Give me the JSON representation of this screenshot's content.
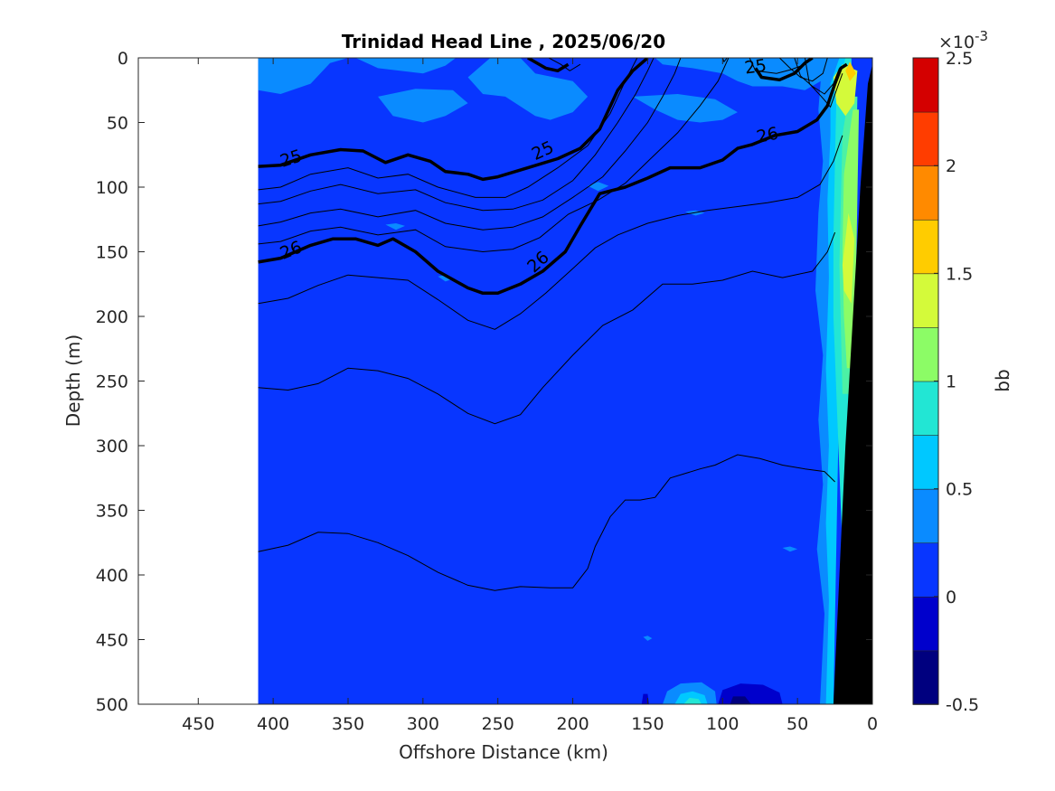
{
  "chart_data": {
    "type": "heatmap",
    "title": "Trinidad Head Line , 2025/06/20",
    "xlabel": "Offshore Distance (km)",
    "ylabel": "Depth (m)",
    "xlim": [
      490,
      0
    ],
    "ylim": [
      0,
      500
    ],
    "x_ticks": [
      "450",
      "400",
      "350",
      "300",
      "250",
      "200",
      "150",
      "100",
      "50",
      "0"
    ],
    "y_ticks": [
      "0",
      "50",
      "100",
      "150",
      "200",
      "250",
      "300",
      "350",
      "400",
      "450",
      "500"
    ],
    "colorbar": {
      "label": "bb",
      "exponent": "×10",
      "exponent_power": "-3",
      "range": [
        -0.5,
        2.5
      ],
      "tick_labels": [
        "2.5",
        "2",
        "1.5",
        "1",
        "0.5",
        "0",
        "-0.5"
      ],
      "colors": [
        "#00007f",
        "#0000cc",
        "#0000ff",
        "#0f54ff",
        "#0a8bff",
        "#00c8ff",
        "#22e6d4",
        "#4cf1a5",
        "#8cfc66",
        "#d4fa3a",
        "#ffcc00",
        "#ff8a00",
        "#ff3d00",
        "#d40000"
      ]
    },
    "background_color": "#0836ff",
    "data_extent_km": [
      410,
      0
    ],
    "bathymetry": {
      "color": "#000000",
      "profile": [
        [
          0,
          5
        ],
        [
          3,
          20
        ],
        [
          8,
          100
        ],
        [
          13,
          200
        ],
        [
          18,
          300
        ],
        [
          22,
          400
        ],
        [
          26,
          500
        ]
      ]
    },
    "contours": {
      "thick_levels": [
        "25",
        "26"
      ],
      "labels": [
        {
          "text": "25",
          "x": 388,
          "y": 78,
          "angle": -18
        },
        {
          "text": "25",
          "x": 220,
          "y": 72,
          "angle": -25
        },
        {
          "text": "25",
          "x": 78,
          "y": 7,
          "angle": -8
        },
        {
          "text": "26",
          "x": 388,
          "y": 149,
          "angle": -22
        },
        {
          "text": "26",
          "x": 223,
          "y": 158,
          "angle": -42
        },
        {
          "text": "26",
          "x": 70,
          "y": 60,
          "angle": -12
        }
      ]
    }
  }
}
